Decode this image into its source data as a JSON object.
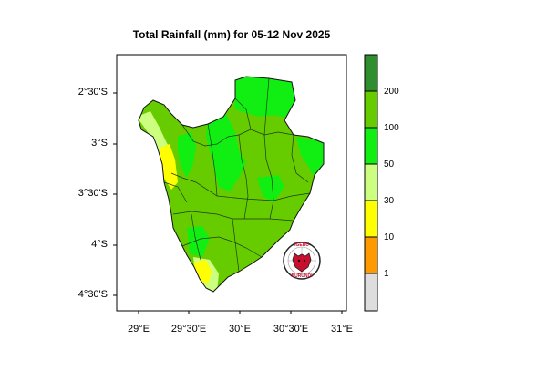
{
  "title": "Total Rainfall (mm) for 05-12 Nov 2025",
  "map": {
    "y_ticks": [
      "2°30'S",
      "3°S",
      "3°30'S",
      "4°S",
      "4°30'S"
    ],
    "x_ticks": [
      "29°E",
      "29°30'E",
      "30°E",
      "30°30'E",
      "31°E"
    ],
    "colors": {
      "deep_green": "#2f8f2f",
      "medium_green": "#66cc00",
      "bright_green": "#11ee11",
      "light_green": "#ccff80",
      "yellow": "#ffff00",
      "orange": "#ff9900",
      "gray": "#dddddd"
    }
  },
  "legend": {
    "labels": [
      "200",
      "100",
      "50",
      "30",
      "10",
      "1"
    ],
    "colors": [
      "#2f8f2f",
      "#66cc00",
      "#11ee11",
      "#ccff80",
      "#ffff00",
      "#ff9900",
      "#dddddd"
    ]
  },
  "logo": {
    "text_top": "IGEBU",
    "text_bottom": "BURUNDI"
  }
}
